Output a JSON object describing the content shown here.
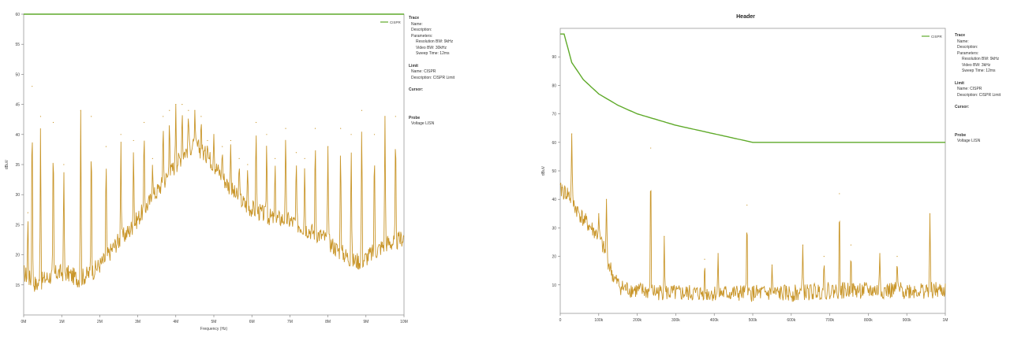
{
  "charts": [
    {
      "id": "left",
      "title": "",
      "legend": {
        "label": "CISPR"
      },
      "info": {
        "trace_heading": "Trace",
        "trace_name": "Name:",
        "trace_description": "Description:",
        "parameters_heading": "Parameters:",
        "param_rbw": "Resolution BW: 9kHz",
        "param_vbw": "Video BW: 30kHz",
        "param_sweep": "Sweep Time: 12ms",
        "limit_heading": "Limit",
        "limit_name": "Name: CISPR",
        "limit_description": "Description: CISPR Limit",
        "cursor_heading": "Cursor:",
        "probe_heading": "Probe",
        "probe_value": "Voltage LISN"
      }
    },
    {
      "id": "right",
      "title": "Header",
      "legend": {
        "label": "CISPR"
      },
      "info": {
        "trace_heading": "Trace",
        "trace_name": "Name:",
        "trace_description": "Description:",
        "parameters_heading": "Parameters:",
        "param_rbw": "Resolution BW: 9kHz",
        "param_vbw": "Video BW: 3kHz",
        "param_sweep": "Sweep Time: 12ms",
        "limit_heading": "Limit",
        "limit_name": "Name: CISPR",
        "limit_description": "Description: CISPR Limit",
        "cursor_heading": "Cursor:",
        "probe_heading": "Probe",
        "probe_value": "Voltage LISN"
      }
    }
  ],
  "chart_data": [
    {
      "type": "line",
      "title": "",
      "xlabel": "Frequency (Hz)",
      "ylabel": "dBuV",
      "xlim": [
        0,
        9
      ],
      "ylim": [
        10,
        60
      ],
      "x_tick_labels": [
        "0M",
        "1M",
        "2M",
        "3M",
        "4M",
        "5M",
        "6M",
        "7M",
        "8M",
        "9M",
        "10M"
      ],
      "yticks": [
        15,
        20,
        25,
        30,
        35,
        40,
        45,
        50,
        55,
        60
      ],
      "grid": false,
      "legend_position": "top-right",
      "series_color": "#c9962a",
      "limit_color": "#5faa2a",
      "limit": {
        "name": "CISPR",
        "x": [
          0,
          9
        ],
        "y": [
          60,
          60
        ]
      },
      "series": [
        {
          "x": [
            0,
            0.15,
            0.3,
            0.5,
            0.8,
            1.0,
            1.3,
            1.6,
            1.9,
            2.2,
            2.5,
            2.8,
            3.1,
            3.4,
            3.6,
            3.8,
            3.95,
            4.1,
            4.25,
            4.4,
            4.6,
            4.8,
            5.0,
            5.3,
            5.6,
            5.9,
            6.2,
            6.5,
            6.8,
            7.1,
            7.4,
            7.6,
            7.8,
            8.0,
            8.2,
            8.4,
            8.6,
            8.8,
            9.0
          ],
          "y": [
            17,
            16,
            15,
            16,
            17,
            17,
            16,
            17,
            19,
            22,
            24,
            27,
            30,
            33,
            35,
            37,
            38,
            38,
            37,
            36,
            34,
            32,
            30,
            28,
            27,
            26,
            26,
            25,
            24,
            23,
            21,
            20,
            19,
            19,
            20,
            21,
            22,
            22,
            23
          ]
        }
      ],
      "peaks": {
        "x": [
          0.1,
          0.2,
          0.4,
          0.7,
          0.95,
          1.35,
          1.6,
          1.95,
          2.3,
          2.6,
          2.85,
          3.05,
          3.3,
          3.45,
          3.6,
          3.75,
          3.9,
          4.05,
          4.2,
          4.35,
          4.5,
          4.7,
          4.9,
          5.1,
          5.3,
          5.5,
          5.75,
          5.95,
          6.2,
          6.45,
          6.65,
          6.9,
          7.2,
          7.5,
          7.75,
          8.0,
          8.3,
          8.55,
          8.8
        ],
        "y": [
          27,
          48,
          43,
          42,
          35,
          44,
          43,
          38,
          40,
          39,
          42,
          36,
          43,
          44,
          45,
          45,
          44,
          44,
          43,
          39,
          40,
          38,
          39,
          36,
          35,
          42,
          40,
          36,
          41,
          37,
          36,
          41,
          38,
          41,
          40,
          44,
          40,
          43,
          43
        ]
      }
    },
    {
      "type": "line",
      "title": "Header",
      "xlabel": "",
      "ylabel": "dBuV",
      "xlim": [
        0,
        1
      ],
      "ylim": [
        0,
        100
      ],
      "x_tick_labels": [
        "0",
        "100k",
        "200k",
        "300k",
        "400k",
        "500k",
        "600k",
        "700k",
        "800k",
        "900k",
        "1M"
      ],
      "yticks": [
        10,
        20,
        30,
        40,
        50,
        60,
        70,
        80,
        90
      ],
      "grid": false,
      "legend_position": "top-right",
      "series_color": "#c9962a",
      "limit_color": "#5faa2a",
      "limit": {
        "name": "CISPR",
        "x": [
          0.01,
          0.03,
          0.06,
          0.1,
          0.15,
          0.2,
          0.3,
          0.4,
          0.5,
          0.6,
          0.7,
          0.8,
          0.9,
          1.0
        ],
        "y": [
          98,
          88,
          82,
          77,
          73,
          70,
          66,
          63,
          60,
          60,
          60,
          60,
          60,
          60
        ]
      },
      "series": [
        {
          "x": [
            0.0,
            0.02,
            0.04,
            0.06,
            0.08,
            0.1,
            0.12,
            0.14,
            0.16,
            0.2,
            0.3,
            0.4,
            0.5,
            0.6,
            0.7,
            0.8,
            0.9,
            1.0
          ],
          "y": [
            43,
            42,
            37,
            33,
            30,
            27,
            20,
            12,
            9,
            8,
            7,
            7,
            7,
            7,
            8,
            8,
            8,
            8
          ]
        }
      ],
      "peaks": {
        "x": [
          0.005,
          0.03,
          0.1,
          0.12,
          0.235,
          0.27,
          0.375,
          0.41,
          0.485,
          0.55,
          0.63,
          0.685,
          0.725,
          0.755,
          0.83,
          0.875,
          0.96
        ],
        "y": [
          45,
          63,
          35,
          40,
          58,
          27,
          19,
          21,
          38,
          17,
          24,
          20,
          42,
          24,
          21,
          20,
          35
        ]
      }
    }
  ]
}
